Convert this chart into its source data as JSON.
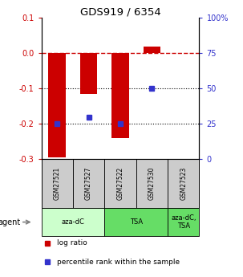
{
  "title": "GDS919 / 6354",
  "samples": [
    "GSM27521",
    "GSM27527",
    "GSM27522",
    "GSM27530",
    "GSM27523"
  ],
  "log_ratio": [
    -0.295,
    -0.115,
    -0.24,
    0.02,
    0.0
  ],
  "percentile": [
    0.25,
    0.3,
    0.25,
    0.5,
    null
  ],
  "ylim": [
    -0.3,
    0.1
  ],
  "yticks_left": [
    -0.3,
    -0.2,
    -0.1,
    0.0,
    0.1
  ],
  "yticks_right_vals": [
    0,
    25,
    50,
    75,
    100
  ],
  "yticks_right_pos": [
    -0.3,
    -0.2,
    -0.1,
    0.0,
    0.1
  ],
  "hlines_dotted": [
    -0.1,
    -0.2
  ],
  "hline_dashed": 0.0,
  "red_color": "#CC0000",
  "blue_color": "#3333CC",
  "bar_width": 0.55,
  "agent_groups": [
    {
      "label": "aza-dC",
      "span": [
        0,
        2
      ],
      "color": "#ccffcc"
    },
    {
      "label": "TSA",
      "span": [
        2,
        4
      ],
      "color": "#66dd66"
    },
    {
      "label": "aza-dC,\nTSA",
      "span": [
        4,
        5
      ],
      "color": "#66dd66"
    }
  ],
  "sample_box_color": "#cccccc",
  "legend_items": [
    {
      "color": "#CC0000",
      "label": "log ratio"
    },
    {
      "color": "#3333CC",
      "label": "percentile rank within the sample"
    }
  ]
}
